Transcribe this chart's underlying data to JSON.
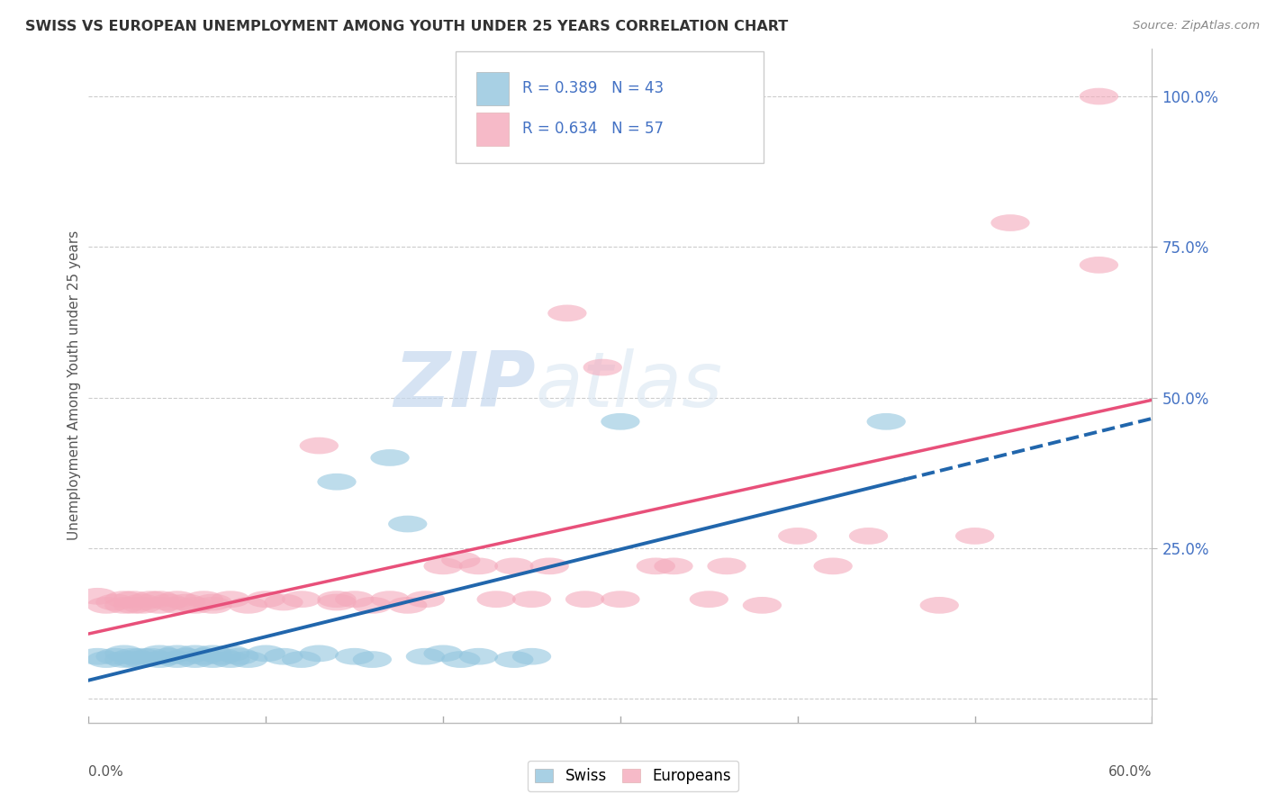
{
  "title": "SWISS VS EUROPEAN UNEMPLOYMENT AMONG YOUTH UNDER 25 YEARS CORRELATION CHART",
  "source": "Source: ZipAtlas.com",
  "ylabel": "Unemployment Among Youth under 25 years",
  "right_yticks": [
    0.0,
    0.25,
    0.5,
    0.75,
    1.0
  ],
  "right_yticklabels": [
    "",
    "25.0%",
    "50.0%",
    "75.0%",
    "100.0%"
  ],
  "xlim": [
    0.0,
    0.6
  ],
  "ylim": [
    -0.04,
    1.08
  ],
  "swiss_color": "#92c5de",
  "european_color": "#f4a9bb",
  "swiss_R": 0.389,
  "swiss_N": 43,
  "european_R": 0.634,
  "european_N": 57,
  "swiss_line_color": "#2166ac",
  "european_line_color": "#e8507a",
  "watermark_zip": "ZIP",
  "watermark_atlas": "atlas",
  "swiss_scatter": [
    [
      0.005,
      0.07
    ],
    [
      0.01,
      0.065
    ],
    [
      0.015,
      0.07
    ],
    [
      0.02,
      0.065
    ],
    [
      0.02,
      0.075
    ],
    [
      0.025,
      0.07
    ],
    [
      0.025,
      0.065
    ],
    [
      0.03,
      0.07
    ],
    [
      0.03,
      0.065
    ],
    [
      0.035,
      0.07
    ],
    [
      0.04,
      0.065
    ],
    [
      0.04,
      0.075
    ],
    [
      0.045,
      0.07
    ],
    [
      0.05,
      0.065
    ],
    [
      0.05,
      0.075
    ],
    [
      0.055,
      0.07
    ],
    [
      0.06,
      0.065
    ],
    [
      0.06,
      0.075
    ],
    [
      0.065,
      0.07
    ],
    [
      0.07,
      0.065
    ],
    [
      0.07,
      0.075
    ],
    [
      0.075,
      0.07
    ],
    [
      0.08,
      0.065
    ],
    [
      0.08,
      0.075
    ],
    [
      0.085,
      0.07
    ],
    [
      0.09,
      0.065
    ],
    [
      0.1,
      0.075
    ],
    [
      0.11,
      0.07
    ],
    [
      0.12,
      0.065
    ],
    [
      0.13,
      0.075
    ],
    [
      0.14,
      0.36
    ],
    [
      0.15,
      0.07
    ],
    [
      0.16,
      0.065
    ],
    [
      0.17,
      0.4
    ],
    [
      0.18,
      0.29
    ],
    [
      0.19,
      0.07
    ],
    [
      0.2,
      0.075
    ],
    [
      0.21,
      0.065
    ],
    [
      0.22,
      0.07
    ],
    [
      0.24,
      0.065
    ],
    [
      0.25,
      0.07
    ],
    [
      0.3,
      0.46
    ],
    [
      0.45,
      0.46
    ]
  ],
  "european_scatter": [
    [
      0.005,
      0.17
    ],
    [
      0.01,
      0.155
    ],
    [
      0.015,
      0.16
    ],
    [
      0.02,
      0.155
    ],
    [
      0.02,
      0.165
    ],
    [
      0.025,
      0.155
    ],
    [
      0.025,
      0.165
    ],
    [
      0.03,
      0.16
    ],
    [
      0.03,
      0.155
    ],
    [
      0.035,
      0.165
    ],
    [
      0.04,
      0.155
    ],
    [
      0.04,
      0.165
    ],
    [
      0.045,
      0.16
    ],
    [
      0.05,
      0.155
    ],
    [
      0.05,
      0.165
    ],
    [
      0.055,
      0.16
    ],
    [
      0.06,
      0.155
    ],
    [
      0.065,
      0.165
    ],
    [
      0.07,
      0.16
    ],
    [
      0.07,
      0.155
    ],
    [
      0.08,
      0.165
    ],
    [
      0.09,
      0.155
    ],
    [
      0.1,
      0.165
    ],
    [
      0.11,
      0.16
    ],
    [
      0.12,
      0.165
    ],
    [
      0.13,
      0.42
    ],
    [
      0.14,
      0.165
    ],
    [
      0.14,
      0.16
    ],
    [
      0.15,
      0.165
    ],
    [
      0.16,
      0.155
    ],
    [
      0.17,
      0.165
    ],
    [
      0.18,
      0.155
    ],
    [
      0.19,
      0.165
    ],
    [
      0.2,
      0.22
    ],
    [
      0.21,
      0.23
    ],
    [
      0.22,
      0.22
    ],
    [
      0.23,
      0.165
    ],
    [
      0.24,
      0.22
    ],
    [
      0.25,
      0.165
    ],
    [
      0.26,
      0.22
    ],
    [
      0.27,
      0.64
    ],
    [
      0.28,
      0.165
    ],
    [
      0.29,
      0.55
    ],
    [
      0.3,
      0.165
    ],
    [
      0.32,
      0.22
    ],
    [
      0.33,
      0.22
    ],
    [
      0.35,
      0.165
    ],
    [
      0.36,
      0.22
    ],
    [
      0.38,
      0.155
    ],
    [
      0.4,
      0.27
    ],
    [
      0.42,
      0.22
    ],
    [
      0.44,
      0.27
    ],
    [
      0.48,
      0.155
    ],
    [
      0.5,
      0.27
    ],
    [
      0.52,
      0.79
    ],
    [
      0.57,
      1.0
    ],
    [
      0.57,
      0.72
    ]
  ]
}
